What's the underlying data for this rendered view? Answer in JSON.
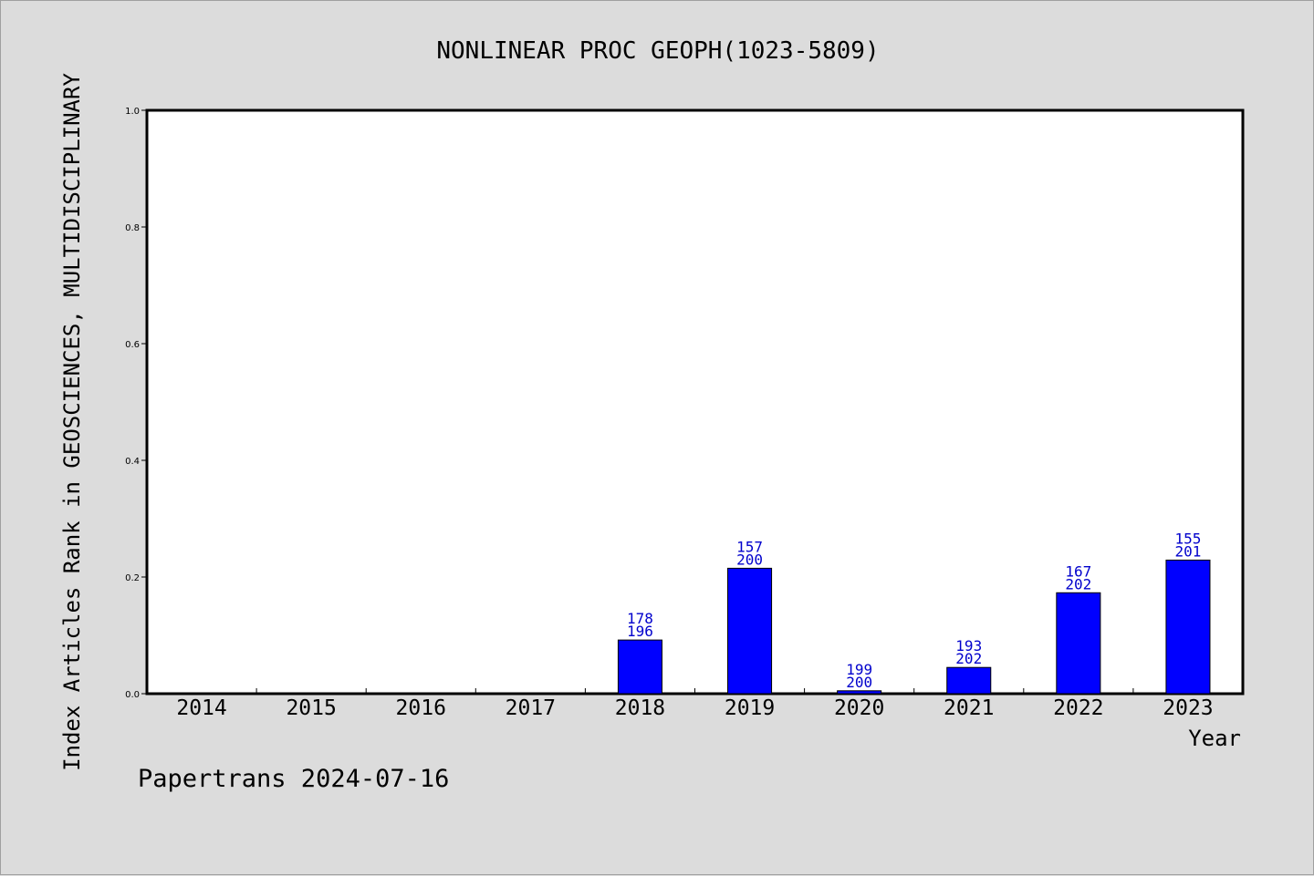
{
  "chart_data": {
    "type": "bar",
    "title": "NONLINEAR PROC GEOPH(1023-5809)",
    "xlabel": "Year",
    "ylabel": "Index Articles Rank in GEOSCIENCES, MULTIDISCIPLINARY",
    "ylim": [
      0,
      1.0
    ],
    "yticks": [
      "0.0",
      "0.2",
      "0.4",
      "0.6",
      "0.8",
      "1.0"
    ],
    "categories": [
      "2014",
      "2015",
      "2016",
      "2017",
      "2018",
      "2019",
      "2020",
      "2021",
      "2022",
      "2023"
    ],
    "values": [
      null,
      null,
      null,
      null,
      0.092,
      0.215,
      0.005,
      0.045,
      0.173,
      0.229
    ],
    "bar_labels": [
      null,
      null,
      null,
      null,
      [
        "178",
        "196"
      ],
      [
        "157",
        "200"
      ],
      [
        "199",
        "200"
      ],
      [
        "193",
        "202"
      ],
      [
        "167",
        "202"
      ],
      [
        "155",
        "201"
      ]
    ],
    "grid": false,
    "colors": {
      "bar": "#0000ff",
      "bar_label": "#0000cc",
      "background": "#dcdcdc",
      "plot_area": "#ffffff"
    }
  },
  "footer": "Papertrans 2024-07-16"
}
